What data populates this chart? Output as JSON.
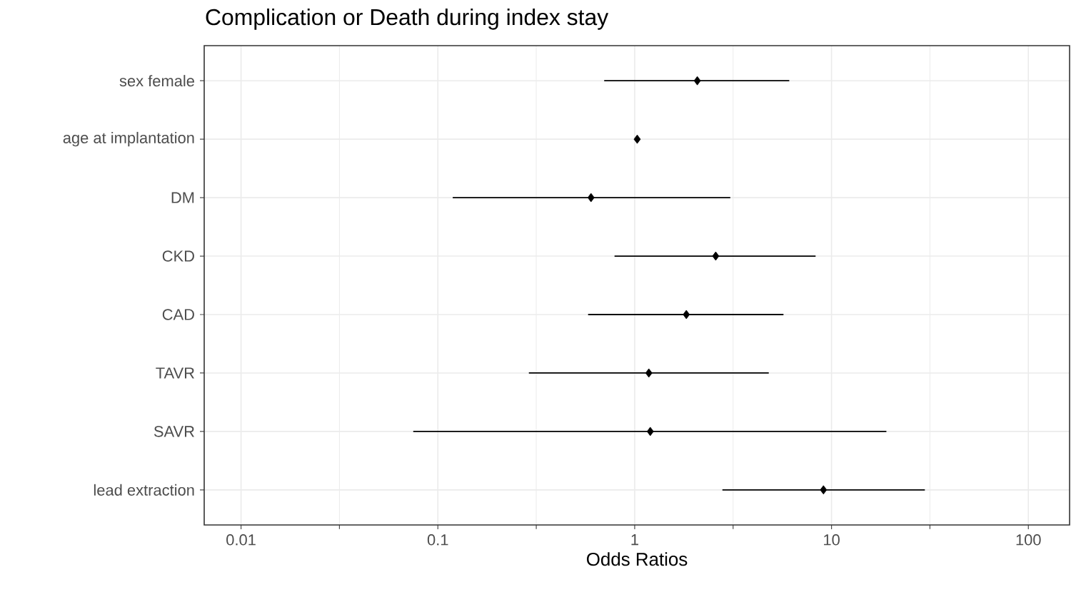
{
  "chart_data": {
    "type": "scatter",
    "orientation": "horizontal",
    "title": "Complication or Death during index stay",
    "xlabel": "Odds Ratios",
    "categories": [
      "sex female",
      "age at implantation",
      "DM",
      "CKD",
      "CAD",
      "TAVR",
      "SAVR",
      "lead extraction"
    ],
    "values": [
      2.08,
      1.03,
      0.6,
      2.58,
      1.83,
      1.18,
      1.2,
      9.1
    ],
    "errors": [
      [
        0.7,
        6.1
      ],
      null,
      [
        0.119,
        3.06
      ],
      [
        0.79,
        8.3
      ],
      [
        0.58,
        5.7
      ],
      [
        0.29,
        4.8
      ],
      [
        0.075,
        19.0
      ],
      [
        2.79,
        29.8
      ]
    ],
    "color": "#000000",
    "marker": "diamond",
    "log": "x",
    "grid": true,
    "xlim": [
      0.0065,
      162
    ],
    "xticks": [
      0.01,
      0.1,
      1,
      10,
      100
    ]
  }
}
